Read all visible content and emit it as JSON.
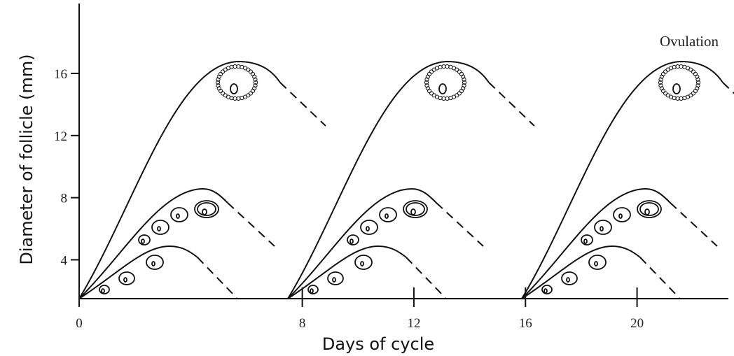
{
  "chart_data": {
    "type": "diagram",
    "xlabel": "Days of cycle",
    "ylabel": "Diameter of follicle (mm)",
    "annotation": "Ovulation",
    "xlim": [
      0,
      23.3
    ],
    "xticks": [
      0,
      8,
      12,
      16,
      20
    ],
    "ylim": [
      1.5,
      20.5
    ],
    "yticks": [
      4,
      8,
      12,
      16
    ]
  }
}
